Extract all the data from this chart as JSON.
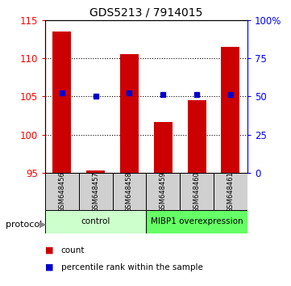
{
  "title": "GDS5213 / 7914015",
  "samples": [
    "GSM648456",
    "GSM648457",
    "GSM648458",
    "GSM648459",
    "GSM648460",
    "GSM648461"
  ],
  "counts": [
    113.5,
    95.3,
    110.5,
    101.7,
    104.5,
    111.5
  ],
  "percentile_ranks": [
    52.5,
    50.5,
    52.5,
    51.5,
    51.5,
    51.5
  ],
  "ylim_left": [
    95,
    115
  ],
  "ylim_right": [
    0,
    100
  ],
  "yticks_left": [
    95,
    100,
    105,
    110,
    115
  ],
  "yticks_right": [
    0,
    25,
    50,
    75,
    100
  ],
  "ytick_labels_right": [
    "0",
    "25",
    "50",
    "75",
    "100%"
  ],
  "bar_color": "#cc0000",
  "scatter_color": "#0000cc",
  "bar_width": 0.55,
  "groups": [
    {
      "label": "control",
      "indices": [
        0,
        1,
        2
      ],
      "color": "#ccffcc"
    },
    {
      "label": "MIBP1 overexpression",
      "indices": [
        3,
        4,
        5
      ],
      "color": "#66ff66"
    }
  ],
  "legend_items": [
    {
      "label": "count",
      "color": "#cc0000"
    },
    {
      "label": "percentile rank within the sample",
      "color": "#0000cc"
    }
  ],
  "protocol_label": "protocol"
}
